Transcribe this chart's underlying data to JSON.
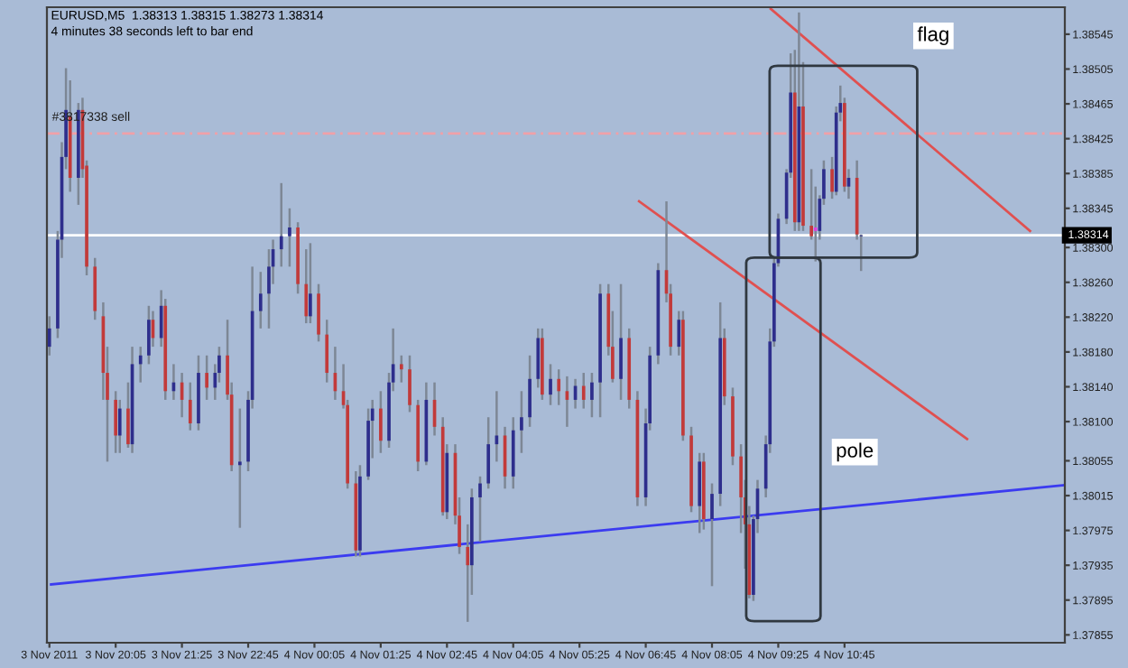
{
  "chart_data": {
    "type": "candlestick",
    "title": "EURUSD,M5  1.38313 1.38315 1.38273 1.38314",
    "subtitle": "4 minutes 38 seconds left to bar end",
    "x": [
      "2011-11-03T18:45",
      "2011-11-03T18:55",
      "2011-11-03T19:00",
      "2011-11-03T19:05",
      "2011-11-03T19:10",
      "2011-11-03T19:20",
      "2011-11-03T19:25",
      "2011-11-03T19:30",
      "2011-11-03T19:40",
      "2011-11-03T19:50",
      "2011-11-03T19:55",
      "2011-11-03T20:05",
      "2011-11-03T20:10",
      "2011-11-03T20:20",
      "2011-11-03T20:25",
      "2011-11-03T20:35",
      "2011-11-03T20:45",
      "2011-11-03T20:50",
      "2011-11-03T21:00",
      "2011-11-03T21:05",
      "2011-11-03T21:15",
      "2011-11-03T21:25",
      "2011-11-03T21:35",
      "2011-11-03T21:45",
      "2011-11-03T21:55",
      "2011-11-03T22:05",
      "2011-11-03T22:10",
      "2011-11-03T22:20",
      "2011-11-03T22:25",
      "2011-11-03T22:35",
      "2011-11-03T22:45",
      "2011-11-03T22:50",
      "2011-11-03T23:00",
      "2011-11-03T23:10",
      "2011-11-03T23:15",
      "2011-11-03T23:25",
      "2011-11-03T23:35",
      "2011-11-03T23:45",
      "2011-11-03T23:55",
      "2011-11-04T00:00",
      "2011-11-04T00:10",
      "2011-11-04T00:20",
      "2011-11-04T00:30",
      "2011-11-04T00:40",
      "2011-11-04T00:45",
      "2011-11-04T00:55",
      "2011-11-04T01:00",
      "2011-11-04T01:10",
      "2011-11-04T01:15",
      "2011-11-04T01:25",
      "2011-11-04T01:35",
      "2011-11-04T01:40",
      "2011-11-04T01:50",
      "2011-11-04T02:00",
      "2011-11-04T02:10",
      "2011-11-04T02:20",
      "2011-11-04T02:30",
      "2011-11-04T02:40",
      "2011-11-04T02:45",
      "2011-11-04T02:55",
      "2011-11-04T03:00",
      "2011-11-04T03:10",
      "2011-11-04T03:15",
      "2011-11-04T03:25",
      "2011-11-04T03:35",
      "2011-11-04T03:45",
      "2011-11-04T03:55",
      "2011-11-04T04:05",
      "2011-11-04T04:15",
      "2011-11-04T04:25",
      "2011-11-04T04:35",
      "2011-11-04T04:40",
      "2011-11-04T04:50",
      "2011-11-04T05:00",
      "2011-11-04T05:10",
      "2011-11-04T05:20",
      "2011-11-04T05:30",
      "2011-11-04T05:40",
      "2011-11-04T05:50",
      "2011-11-04T06:00",
      "2011-11-04T06:05",
      "2011-11-04T06:15",
      "2011-11-04T06:25",
      "2011-11-04T06:35",
      "2011-11-04T06:45",
      "2011-11-04T06:50",
      "2011-11-04T07:00",
      "2011-11-04T07:10",
      "2011-11-04T07:15",
      "2011-11-04T07:25",
      "2011-11-04T07:30",
      "2011-11-04T07:40",
      "2011-11-04T07:50",
      "2011-11-04T07:55",
      "2011-11-04T08:05",
      "2011-11-04T08:15",
      "2011-11-04T08:20",
      "2011-11-04T08:30",
      "2011-11-04T08:40",
      "2011-11-04T08:45",
      "2011-11-04T08:50",
      "2011-11-04T08:55",
      "2011-11-04T09:00",
      "2011-11-04T09:10",
      "2011-11-04T09:15",
      "2011-11-04T09:20",
      "2011-11-04T09:25",
      "2011-11-04T09:35",
      "2011-11-04T09:40",
      "2011-11-04T09:45",
      "2011-11-04T09:50",
      "2011-11-04T09:55",
      "2011-11-04T10:05",
      "2011-11-04T10:10",
      "2011-11-04T10:15",
      "2011-11-04T10:20",
      "2011-11-04T10:30",
      "2011-11-04T10:35",
      "2011-11-04T10:40",
      "2011-11-04T10:45",
      "2011-11-04T10:50",
      "2011-11-04T11:00",
      "2011-11-04T11:05"
    ],
    "ohlc": [
      [
        1.38186,
        1.38221,
        1.38176,
        1.38207
      ],
      [
        1.38207,
        1.38319,
        1.38196,
        1.38309
      ],
      [
        1.38309,
        1.38421,
        1.38288,
        1.38404
      ],
      [
        1.38404,
        1.38506,
        1.3839,
        1.38458
      ],
      [
        1.38451,
        1.38492,
        1.38364,
        1.3838
      ],
      [
        1.3838,
        1.38466,
        1.38349,
        1.38458
      ],
      [
        1.38458,
        1.38472,
        1.3838,
        1.3839
      ],
      [
        1.38394,
        1.384,
        1.38268,
        1.38278
      ],
      [
        1.38278,
        1.38288,
        1.38217,
        1.38227
      ],
      [
        1.38221,
        1.38237,
        1.38125,
        1.38156
      ],
      [
        1.38156,
        1.38186,
        1.38054,
        1.38125
      ],
      [
        1.38125,
        1.38135,
        1.38064,
        1.38084
      ],
      [
        1.38084,
        1.38125,
        1.38064,
        1.38115
      ],
      [
        1.38115,
        1.38145,
        1.3807,
        1.38074
      ],
      [
        1.38074,
        1.38186,
        1.38064,
        1.38166
      ],
      [
        1.38166,
        1.38186,
        1.38145,
        1.38176
      ],
      [
        1.38176,
        1.38233,
        1.38166,
        1.38217
      ],
      [
        1.38217,
        1.38227,
        1.38186,
        1.38196
      ],
      [
        1.38196,
        1.38251,
        1.38186,
        1.38233
      ],
      [
        1.38233,
        1.38241,
        1.38125,
        1.38135
      ],
      [
        1.38135,
        1.38166,
        1.38125,
        1.38145
      ],
      [
        1.38145,
        1.38156,
        1.38105,
        1.38125
      ],
      [
        1.38125,
        1.38145,
        1.3809,
        1.38098
      ],
      [
        1.38098,
        1.38176,
        1.3809,
        1.38156
      ],
      [
        1.38156,
        1.38176,
        1.38125,
        1.38139
      ],
      [
        1.38139,
        1.38166,
        1.38125,
        1.38156
      ],
      [
        1.38156,
        1.38186,
        1.38145,
        1.38176
      ],
      [
        1.38176,
        1.38217,
        1.38125,
        1.38131
      ],
      [
        1.38131,
        1.38145,
        1.38043,
        1.3805
      ],
      [
        1.3805,
        1.38115,
        1.37978,
        1.38054
      ],
      [
        1.38054,
        1.38135,
        1.38043,
        1.38125
      ],
      [
        1.38125,
        1.38278,
        1.38115,
        1.38227
      ],
      [
        1.38227,
        1.38272,
        1.38207,
        1.38247
      ],
      [
        1.38247,
        1.38298,
        1.38207,
        1.38278
      ],
      [
        1.38278,
        1.38309,
        1.38258,
        1.38298
      ],
      [
        1.38298,
        1.38374,
        1.38278,
        1.38313
      ],
      [
        1.38313,
        1.38345,
        1.38278,
        1.38323
      ],
      [
        1.38323,
        1.38329,
        1.38247,
        1.38258
      ],
      [
        1.38258,
        1.38298,
        1.38213,
        1.38221
      ],
      [
        1.38221,
        1.38305,
        1.38213,
        1.38247
      ],
      [
        1.38247,
        1.38258,
        1.38192,
        1.382
      ],
      [
        1.382,
        1.38217,
        1.38145,
        1.38156
      ],
      [
        1.38156,
        1.38186,
        1.38125,
        1.38135
      ],
      [
        1.38135,
        1.38166,
        1.38115,
        1.38119
      ],
      [
        1.38119,
        1.38125,
        1.38023,
        1.38029
      ],
      [
        1.38029,
        1.38043,
        1.37945,
        1.37952
      ],
      [
        1.37952,
        1.3805,
        1.37945,
        1.38037
      ],
      [
        1.38037,
        1.38115,
        1.38033,
        1.38101
      ],
      [
        1.38101,
        1.38125,
        1.38058,
        1.38115
      ],
      [
        1.38115,
        1.38135,
        1.38064,
        1.38078
      ],
      [
        1.38078,
        1.38156,
        1.3807,
        1.38145
      ],
      [
        1.38145,
        1.38207,
        1.38135,
        1.38166
      ],
      [
        1.38166,
        1.38176,
        1.38145,
        1.3816
      ],
      [
        1.3816,
        1.38176,
        1.38111,
        1.38119
      ],
      [
        1.38119,
        1.38125,
        1.38043,
        1.38054
      ],
      [
        1.38054,
        1.38145,
        1.3805,
        1.38125
      ],
      [
        1.38125,
        1.38145,
        1.38084,
        1.38094
      ],
      [
        1.38094,
        1.38105,
        1.37992,
        1.37996
      ],
      [
        1.37996,
        1.38074,
        1.37988,
        1.38064
      ],
      [
        1.38064,
        1.38074,
        1.37982,
        1.37992
      ],
      [
        1.37992,
        1.38013,
        1.37948,
        1.37956
      ],
      [
        1.37956,
        1.37982,
        1.3787,
        1.37935
      ],
      [
        1.37935,
        1.38023,
        1.37901,
        1.38013
      ],
      [
        1.38013,
        1.38037,
        1.37962,
        1.38029
      ],
      [
        1.38029,
        1.38105,
        1.38023,
        1.38074
      ],
      [
        1.38074,
        1.38135,
        1.38054,
        1.38084
      ],
      [
        1.38084,
        1.38094,
        1.38023,
        1.38037
      ],
      [
        1.38037,
        1.38105,
        1.38023,
        1.3809
      ],
      [
        1.3809,
        1.38135,
        1.38064,
        1.38105
      ],
      [
        1.38105,
        1.38176,
        1.38094,
        1.38149
      ],
      [
        1.38149,
        1.38207,
        1.38139,
        1.38196
      ],
      [
        1.38196,
        1.38207,
        1.38125,
        1.38131
      ],
      [
        1.38131,
        1.38166,
        1.38119,
        1.38149
      ],
      [
        1.38149,
        1.3816,
        1.38119,
        1.38135
      ],
      [
        1.38135,
        1.38152,
        1.38094,
        1.38125
      ],
      [
        1.38125,
        1.38149,
        1.38115,
        1.38141
      ],
      [
        1.38141,
        1.38156,
        1.38115,
        1.38125
      ],
      [
        1.38125,
        1.38156,
        1.38105,
        1.38145
      ],
      [
        1.38145,
        1.38258,
        1.38105,
        1.38247
      ],
      [
        1.38247,
        1.38258,
        1.38176,
        1.38186
      ],
      [
        1.38186,
        1.38227,
        1.38145,
        1.38149
      ],
      [
        1.38149,
        1.38258,
        1.38125,
        1.38196
      ],
      [
        1.38196,
        1.38207,
        1.38115,
        1.38125
      ],
      [
        1.38125,
        1.38135,
        1.38003,
        1.38013
      ],
      [
        1.38013,
        1.38115,
        1.38003,
        1.38098
      ],
      [
        1.38098,
        1.38186,
        1.3809,
        1.38176
      ],
      [
        1.38176,
        1.38282,
        1.38166,
        1.38274
      ],
      [
        1.38274,
        1.38353,
        1.38237,
        1.38247
      ],
      [
        1.38247,
        1.38258,
        1.38176,
        1.38186
      ],
      [
        1.38186,
        1.38227,
        1.38176,
        1.38217
      ],
      [
        1.38217,
        1.38227,
        1.38078,
        1.38084
      ],
      [
        1.38084,
        1.38094,
        1.37996,
        1.38003
      ],
      [
        1.38003,
        1.38064,
        1.37972,
        1.38054
      ],
      [
        1.38054,
        1.38064,
        1.37976,
        1.37988
      ],
      [
        1.37988,
        1.38029,
        1.37911,
        1.38017
      ],
      [
        1.38017,
        1.38237,
        1.38003,
        1.38196
      ],
      [
        1.38196,
        1.38207,
        1.38119,
        1.38129
      ],
      [
        1.38129,
        1.38139,
        1.3805,
        1.3806
      ],
      [
        1.3806,
        1.38074,
        1.37972,
        1.38013
      ],
      [
        1.38013,
        1.38033,
        1.37931,
        1.37982
      ],
      [
        1.37982,
        1.38003,
        1.37897,
        1.37901
      ],
      [
        1.37901,
        1.37992,
        1.37894,
        1.37988
      ],
      [
        1.37988,
        1.38033,
        1.37972,
        1.38023
      ],
      [
        1.38023,
        1.38084,
        1.38013,
        1.38074
      ],
      [
        1.38074,
        1.38207,
        1.38064,
        1.38192
      ],
      [
        1.38192,
        1.38288,
        1.38186,
        1.38282
      ],
      [
        1.38282,
        1.38339,
        1.38278,
        1.38333
      ],
      [
        1.38333,
        1.3839,
        1.38327,
        1.38386
      ],
      [
        1.38386,
        1.38523,
        1.3838,
        1.38478
      ],
      [
        1.38478,
        1.38527,
        1.38319,
        1.38329
      ],
      [
        1.38329,
        1.3857,
        1.38319,
        1.38462
      ],
      [
        1.38462,
        1.38513,
        1.38319,
        1.38325
      ],
      [
        1.38325,
        1.3839,
        1.38309,
        1.38313
      ],
      [
        1.38319,
        1.3837,
        1.38284,
        1.38323
      ],
      [
        1.38319,
        1.3836,
        1.38309,
        1.38356
      ],
      [
        1.38356,
        1.384,
        1.38349,
        1.3839
      ],
      [
        1.3839,
        1.38404,
        1.38356,
        1.38364
      ],
      [
        1.38364,
        1.38462,
        1.3836,
        1.38455
      ],
      [
        1.38455,
        1.38486,
        1.38445,
        1.38466
      ],
      [
        1.38466,
        1.38472,
        1.38364,
        1.3837
      ],
      [
        1.3837,
        1.3839,
        1.38356,
        1.3838
      ],
      [
        1.3838,
        1.384,
        1.38309,
        1.38315
      ],
      [
        1.38313,
        1.38315,
        1.38273,
        1.38314
      ]
    ],
    "colors": [
      "#2e2e8c",
      "#2e2e8c",
      "#2e2e8c",
      "#2e2e8c",
      "#c23a3a",
      "#2e2e8c",
      "#c23a3a",
      "#c23a3a",
      "#c23a3a",
      "#c23a3a",
      "#c23a3a",
      "#c23a3a",
      "#2e2e8c",
      "#c23a3a",
      "#2e2e8c",
      "#2e2e8c",
      "#2e2e8c",
      "#c23a3a",
      "#2e2e8c",
      "#c23a3a",
      "#2e2e8c",
      "#c23a3a",
      "#c23a3a",
      "#2e2e8c",
      "#c23a3a",
      "#2e2e8c",
      "#2e2e8c",
      "#c23a3a",
      "#c23a3a",
      "#2e2e8c",
      "#2e2e8c",
      "#2e2e8c",
      "#2e2e8c",
      "#2e2e8c",
      "#2e2e8c",
      "#2e2e8c",
      "#2e2e8c",
      "#c23a3a",
      "#c23a3a",
      "#2e2e8c",
      "#c23a3a",
      "#c23a3a",
      "#c23a3a",
      "#c23a3a",
      "#c23a3a",
      "#c23a3a",
      "#2e2e8c",
      "#2e2e8c",
      "#2e2e8c",
      "#c23a3a",
      "#2e2e8c",
      "#2e2e8c",
      "#c23a3a",
      "#c23a3a",
      "#c23a3a",
      "#2e2e8c",
      "#c23a3a",
      "#c23a3a",
      "#2e2e8c",
      "#c23a3a",
      "#c23a3a",
      "#c23a3a",
      "#2e2e8c",
      "#2e2e8c",
      "#2e2e8c",
      "#2e2e8c",
      "#c23a3a",
      "#2e2e8c",
      "#2e2e8c",
      "#2e2e8c",
      "#2e2e8c",
      "#c23a3a",
      "#2e2e8c",
      "#c23a3a",
      "#c23a3a",
      "#2e2e8c",
      "#c23a3a",
      "#2e2e8c",
      "#2e2e8c",
      "#c23a3a",
      "#c23a3a",
      "#2e2e8c",
      "#c23a3a",
      "#c23a3a",
      "#2e2e8c",
      "#2e2e8c",
      "#2e2e8c",
      "#c23a3a",
      "#c23a3a",
      "#2e2e8c",
      "#c23a3a",
      "#c23a3a",
      "#2e2e8c",
      "#c23a3a",
      "#2e2e8c",
      "#2e2e8c",
      "#c23a3a",
      "#c23a3a",
      "#c23a3a",
      "#c23a3a",
      "#c23a3a",
      "#2e2e8c",
      "#2e2e8c",
      "#2e2e8c",
      "#2e2e8c",
      "#2e2e8c",
      "#2e2e8c",
      "#2e2e8c",
      "#2e2e8c",
      "#c23a3a",
      "#2e2e8c",
      "#c23a3a",
      "#c23a3a",
      "#e040e0",
      "#2e2e8c",
      "#2e2e8c",
      "#c23a3a",
      "#2e2e8c",
      "#2e2e8c",
      "#c23a3a",
      "#2e2e8c",
      "#c23a3a",
      "#2e2e8c"
    ],
    "series": [
      {
        "type": "line",
        "color": "#3b3bf0",
        "x": [
          "2011-11-03T18:47",
          "2011-11-04T15:11"
        ],
        "values": [
          1.37913,
          1.38027
        ]
      },
      {
        "type": "line",
        "color": "#e05050",
        "x": [
          "2011-11-04T06:37",
          "2011-11-04T13:13"
        ],
        "values": [
          1.38353,
          1.3808
        ]
      },
      {
        "type": "line",
        "color": "#e05050",
        "x": [
          "2011-11-04T09:16",
          "2011-11-04T14:29"
        ],
        "values": [
          1.38574,
          1.38319
        ]
      }
    ],
    "ref_lines": [
      {
        "axis": "y",
        "value": 1.38314,
        "label": "1.38314",
        "color": "#ffffff",
        "line_style": "solid"
      },
      {
        "axis": "y",
        "value": 1.38431,
        "label": "#3817338 sell",
        "color": "#f0a0a8",
        "line_style": "dashed"
      }
    ],
    "annotations": [
      "flag",
      "pole"
    ],
    "xlim": [
      "2011-11-03T18:42",
      "2011-11-04T15:11"
    ],
    "ylim": [
      1.37846,
      1.38576
    ],
    "xticks": [
      {
        "value": "2011-11-03T18:45",
        "label": "3 Nov 2011"
      },
      {
        "value": "2011-11-03T20:05",
        "label": "3 Nov 20:05"
      },
      {
        "value": "2011-11-03T21:25",
        "label": "3 Nov 21:25"
      },
      {
        "value": "2011-11-03T22:45",
        "label": "3 Nov 22:45"
      },
      {
        "value": "2011-11-04T00:05",
        "label": "4 Nov 00:05"
      },
      {
        "value": "2011-11-04T01:25",
        "label": "4 Nov 01:25"
      },
      {
        "value": "2011-11-04T02:45",
        "label": "4 Nov 02:45"
      },
      {
        "value": "2011-11-04T04:05",
        "label": "4 Nov 04:05"
      },
      {
        "value": "2011-11-04T05:25",
        "label": "4 Nov 05:25"
      },
      {
        "value": "2011-11-04T06:45",
        "label": "4 Nov 06:45"
      },
      {
        "value": "2011-11-04T08:05",
        "label": "4 Nov 08:05"
      },
      {
        "value": "2011-11-04T09:25",
        "label": "4 Nov 09:25"
      },
      {
        "value": "2011-11-04T10:45",
        "label": "4 Nov 10:45"
      }
    ],
    "yticks": [
      1.38545,
      1.38505,
      1.38465,
      1.38425,
      1.38385,
      1.38345,
      {
        "value": 1.383,
        "label": "1.38300"
      },
      {
        "value": 1.3826,
        "label": "1.38260"
      },
      {
        "value": 1.3822,
        "label": "1.38220"
      },
      {
        "value": 1.3818,
        "label": "1.38180"
      },
      {
        "value": 1.3814,
        "label": "1.38140"
      },
      {
        "value": 1.381,
        "label": "1.38100"
      },
      1.38055,
      1.38015,
      1.37975,
      1.37935,
      1.37895,
      1.37855
    ],
    "grid": false,
    "legend": false
  }
}
